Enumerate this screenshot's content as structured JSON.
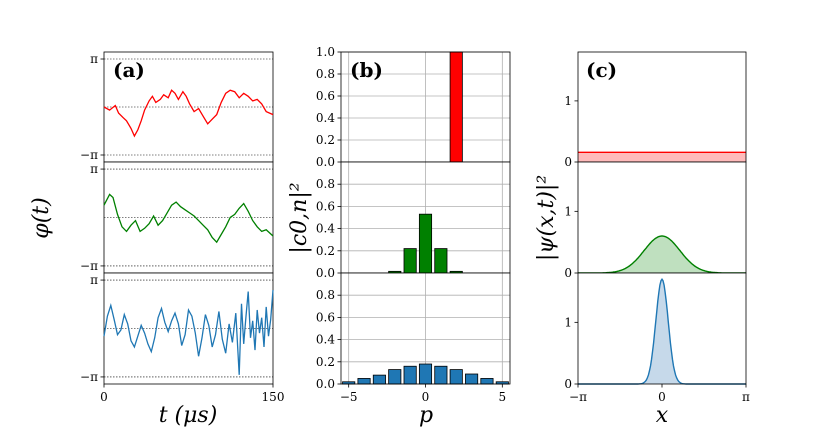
{
  "chart_data": [
    {
      "type": "line",
      "panel_label": "(a)",
      "xlabel": "t (μs)",
      "ylabel": "φ(t)",
      "xlim": [
        0,
        150
      ],
      "x_ticks": [
        {
          "v": 0,
          "label": "0"
        },
        {
          "v": 150,
          "label": "150"
        }
      ],
      "y_ticks": [
        {
          "v": 3.1416,
          "label": "π"
        },
        {
          "v": -3.1416,
          "label": "−π"
        }
      ],
      "ylim": [
        -3.6,
        3.6
      ],
      "series": [
        {
          "name": "top",
          "color": "#ff0000",
          "x": [
            0,
            5,
            10,
            13,
            17,
            20,
            24,
            27,
            30,
            33,
            36,
            40,
            43,
            46,
            50,
            53,
            57,
            60,
            63,
            66,
            70,
            73,
            76,
            80,
            84,
            88,
            92,
            96,
            100,
            104,
            108,
            112,
            116,
            120,
            124,
            128,
            132,
            136,
            140,
            144,
            150
          ],
          "y": [
            0.0,
            -0.2,
            0.1,
            -0.4,
            -0.7,
            -0.9,
            -1.4,
            -1.9,
            -1.5,
            -0.9,
            -0.2,
            0.4,
            0.7,
            0.3,
            0.5,
            0.8,
            0.6,
            1.1,
            0.9,
            0.5,
            1.0,
            0.7,
            0.2,
            -0.3,
            -0.1,
            -0.6,
            -1.1,
            -0.8,
            -0.5,
            0.3,
            0.9,
            1.1,
            1.0,
            0.6,
            0.9,
            0.7,
            0.4,
            0.5,
            0.2,
            -0.3,
            -0.5
          ]
        },
        {
          "name": "middle",
          "color": "#008000",
          "x": [
            0,
            5,
            8,
            12,
            16,
            20,
            24,
            28,
            32,
            36,
            40,
            44,
            48,
            52,
            56,
            60,
            64,
            68,
            72,
            76,
            80,
            84,
            88,
            92,
            96,
            100,
            104,
            108,
            112,
            116,
            120,
            124,
            128,
            132,
            136,
            140,
            144,
            150
          ],
          "y": [
            0.8,
            1.5,
            1.3,
            0.2,
            -0.6,
            -0.9,
            -0.5,
            -0.2,
            -0.9,
            -0.7,
            -0.4,
            0.1,
            -0.5,
            -0.2,
            0.3,
            0.8,
            1.0,
            0.7,
            0.5,
            0.3,
            0.1,
            -0.2,
            -0.5,
            -0.8,
            -1.3,
            -1.6,
            -1.1,
            -0.6,
            0.0,
            0.2,
            0.6,
            0.9,
            0.4,
            -0.2,
            -0.6,
            -0.9,
            -0.8,
            -1.2
          ]
        },
        {
          "name": "bottom",
          "color": "#1f77b4",
          "x": [
            0,
            3,
            6,
            9,
            12,
            15,
            18,
            21,
            24,
            27,
            30,
            33,
            36,
            39,
            42,
            45,
            48,
            51,
            54,
            57,
            60,
            63,
            66,
            69,
            72,
            75,
            78,
            81,
            84,
            87,
            90,
            93,
            96,
            99,
            102,
            105,
            108,
            111,
            114,
            117,
            120,
            122,
            124,
            126,
            128,
            130,
            132,
            134,
            136,
            138,
            140,
            142,
            144,
            146,
            148,
            150
          ],
          "y": [
            -0.5,
            0.8,
            1.5,
            0.6,
            -0.4,
            -0.1,
            0.9,
            0.3,
            -0.8,
            -1.2,
            -0.5,
            0.2,
            -0.3,
            -1.0,
            -1.5,
            -0.6,
            0.7,
            1.3,
            0.4,
            -0.2,
            0.5,
            1.0,
            0.3,
            -1.1,
            -0.4,
            1.2,
            0.8,
            -0.3,
            -1.8,
            -0.6,
            0.9,
            0.2,
            -1.2,
            -0.4,
            1.1,
            -0.7,
            -1.6,
            0.3,
            -0.9,
            1.0,
            -3.0,
            1.6,
            -1.0,
            0.8,
            2.4,
            -0.6,
            0.5,
            -1.4,
            1.2,
            -0.3,
            0.7,
            -1.2,
            1.4,
            -0.5,
            0.6,
            2.5
          ]
        }
      ]
    },
    {
      "type": "bar",
      "panel_label": "(b)",
      "xlabel": "p",
      "ylabel": "|c0,n|²",
      "xlim": [
        -5.5,
        5.5
      ],
      "ylim": [
        0,
        1.0
      ],
      "x_ticks": [
        {
          "v": -5,
          "label": "−5"
        },
        {
          "v": 0,
          "label": "0"
        },
        {
          "v": 5,
          "label": "5"
        }
      ],
      "y_ticks_top": [
        {
          "v": 0.0,
          "label": "0.0"
        },
        {
          "v": 0.2,
          "label": "0.2"
        },
        {
          "v": 0.4,
          "label": "0.4"
        },
        {
          "v": 0.6,
          "label": "0.6"
        },
        {
          "v": 0.8,
          "label": "0.8"
        },
        {
          "v": 1.0,
          "label": "1.0"
        }
      ],
      "y_ticks": [
        {
          "v": 0.0,
          "label": "0.0"
        },
        {
          "v": 0.2,
          "label": "0.2"
        },
        {
          "v": 0.4,
          "label": "0.4"
        },
        {
          "v": 0.6,
          "label": "0.6"
        },
        {
          "v": 0.8,
          "label": "0.8"
        }
      ],
      "grid": true,
      "series": [
        {
          "name": "top",
          "color": "#ff0000",
          "categories": [
            2
          ],
          "values": [
            1.0
          ]
        },
        {
          "name": "middle",
          "color": "#008000",
          "categories": [
            -2,
            -1,
            0,
            1,
            2
          ],
          "values": [
            0.015,
            0.22,
            0.53,
            0.22,
            0.015
          ]
        },
        {
          "name": "bottom",
          "color": "#1f77b4",
          "categories": [
            -5,
            -4,
            -3,
            -2,
            -1,
            0,
            1,
            2,
            3,
            4,
            5
          ],
          "values": [
            0.02,
            0.05,
            0.08,
            0.13,
            0.16,
            0.18,
            0.16,
            0.13,
            0.09,
            0.05,
            0.02
          ]
        }
      ]
    },
    {
      "type": "area",
      "panel_label": "(c)",
      "xlabel": "x",
      "ylabel": "|ψ(x,t)|²",
      "xlim": [
        -3.1416,
        3.1416
      ],
      "ylim": [
        0,
        1.8
      ],
      "x_ticks": [
        {
          "v": -3.1416,
          "label": "−π"
        },
        {
          "v": 0,
          "label": "0"
        },
        {
          "v": 3.1416,
          "label": "π"
        }
      ],
      "y_ticks": [
        {
          "v": 0,
          "label": "0"
        },
        {
          "v": 1,
          "label": "1"
        }
      ],
      "series": [
        {
          "name": "top",
          "color": "#ff0000",
          "fill": "#ffbbbb",
          "kind": "flat",
          "value": 0.159
        },
        {
          "name": "middle",
          "color": "#008000",
          "fill": "#bfe0bf",
          "kind": "gaussian",
          "peak": 0.6,
          "sigma": 0.67
        },
        {
          "name": "bottom",
          "color": "#1f77b4",
          "fill": "#c6d9ea",
          "kind": "gaussian",
          "peak": 1.7,
          "sigma": 0.23
        }
      ]
    }
  ]
}
